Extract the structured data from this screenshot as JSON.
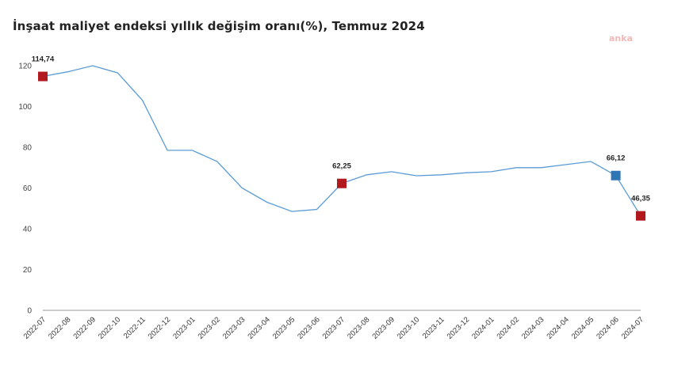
{
  "title": "İnşaat maliyet endeksi yıllık değişim oranı(%), Temmuz 2024",
  "watermark": "anka",
  "colors": {
    "line": "#5b9bd5",
    "marker_red": "#b2191f",
    "marker_blue": "#2e75b6",
    "axis": "#999999"
  },
  "chart_data": {
    "type": "line",
    "title": "İnşaat maliyet endeksi yıllık değişim oranı(%), Temmuz 2024",
    "xlabel": "",
    "ylabel": "",
    "ylim": [
      0,
      120
    ],
    "yticks": [
      0,
      20,
      40,
      60,
      80,
      100,
      120
    ],
    "grid": false,
    "categories": [
      "2022-07",
      "2022-08",
      "2022-09",
      "2022-10",
      "2022-11",
      "2022-12",
      "2023-01",
      "2023-02",
      "2023-03",
      "2023-04",
      "2023-05",
      "2023-06",
      "2023-07",
      "2023-08",
      "2023-09",
      "2023-10",
      "2023-11",
      "2023-12",
      "2024-01",
      "2024-02",
      "2024-03",
      "2024-04",
      "2024-05",
      "2024-06",
      "2024-07"
    ],
    "series": [
      {
        "values": [
          114.74,
          117,
          120,
          116.5,
          103,
          78.5,
          78.5,
          73,
          60,
          53,
          48.5,
          49.5,
          62.25,
          66.5,
          68,
          66,
          66.5,
          67.5,
          68,
          70,
          70,
          71.5,
          73,
          66.12,
          46.35
        ]
      }
    ],
    "highlights": [
      {
        "index": 0,
        "label": "114,74",
        "color": "red"
      },
      {
        "index": 12,
        "label": "62,25",
        "color": "red"
      },
      {
        "index": 23,
        "label": "66,12",
        "color": "blue"
      },
      {
        "index": 24,
        "label": "46,35",
        "color": "red"
      }
    ]
  }
}
